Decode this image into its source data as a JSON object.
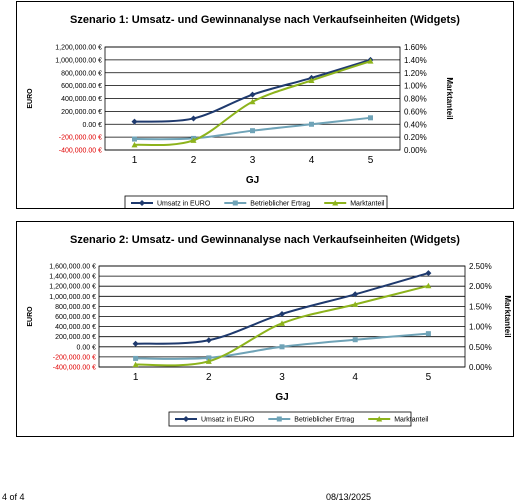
{
  "chart_data": [
    {
      "type": "line",
      "title": "Szenario 1: Umsatz- und Gewinnanalyse nach Verkaufseinheiten (Widgets)",
      "xlabel": "GJ",
      "ylabel": "EURO",
      "y2label": "Marktanteil",
      "categories": [
        "1",
        "2",
        "3",
        "4",
        "5"
      ],
      "ylim": [
        -400000,
        1200000
      ],
      "y2lim": [
        0,
        0.016
      ],
      "y_ticks": [
        "1,200,000.00 €",
        "1,000,000.00 €",
        "800,000.00 €",
        "600,000.00 €",
        "400,000.00 €",
        "200,000.00 €",
        "0.00 €",
        "-200,000.00 €",
        "-400,000.00 €"
      ],
      "y2_ticks": [
        "1.60%",
        "1.40%",
        "1.20%",
        "1.00%",
        "0.80%",
        "0.60%",
        "0.40%",
        "0.20%",
        "0.00%"
      ],
      "grid": true,
      "legend": "bottom",
      "series": [
        {
          "name": "Umsatz in EURO",
          "axis": "left",
          "color": "#1f3a6e",
          "marker": "diamond",
          "values": [
            40000,
            90000,
            460000,
            720000,
            1000000
          ]
        },
        {
          "name": "Betrieblicher Ertrag",
          "axis": "left",
          "color": "#6fa3b7",
          "marker": "square",
          "values": [
            -230000,
            -220000,
            -100000,
            0,
            100000
          ]
        },
        {
          "name": "Marktanteil",
          "axis": "right",
          "color": "#8db31c",
          "marker": "triangle",
          "values": [
            0.0008,
            0.0015,
            0.0075,
            0.0108,
            0.0138
          ]
        }
      ]
    },
    {
      "type": "line",
      "title": "Szenario 2: Umsatz- und Gewinnanalyse nach Verkaufseinheiten (Widgets)",
      "xlabel": "GJ",
      "ylabel": "EURO",
      "y2label": "Marktanteil",
      "categories": [
        "1",
        "2",
        "3",
        "4",
        "5"
      ],
      "ylim": [
        -400000,
        1600000
      ],
      "y2lim": [
        0,
        0.025
      ],
      "y_ticks": [
        "1,600,000.00 €",
        "1,400,000.00 €",
        "1,200,000.00 €",
        "1,000,000.00 €",
        "800,000.00 €",
        "600,000.00 €",
        "400,000.00 €",
        "200,000.00 €",
        "0.00 €",
        "-200,000.00 €",
        "-400,000.00 €"
      ],
      "y2_ticks": [
        "2.50%",
        "2.00%",
        "1.50%",
        "1.00%",
        "0.50%",
        "0.00%"
      ],
      "grid": true,
      "legend": "bottom",
      "series": [
        {
          "name": "Umsatz in EURO",
          "axis": "left",
          "color": "#1f3a6e",
          "marker": "diamond",
          "values": [
            60000,
            130000,
            650000,
            1040000,
            1460000
          ]
        },
        {
          "name": "Betrieblicher Ertrag",
          "axis": "left",
          "color": "#6fa3b7",
          "marker": "square",
          "values": [
            -230000,
            -220000,
            0,
            140000,
            260000
          ]
        },
        {
          "name": "Marktanteil",
          "axis": "right",
          "color": "#8db31c",
          "marker": "triangle",
          "values": [
            0.0006,
            0.0014,
            0.0108,
            0.0155,
            0.0201
          ]
        }
      ]
    }
  ],
  "footer": {
    "page": "4 of 4",
    "date": "08/13/2025"
  }
}
